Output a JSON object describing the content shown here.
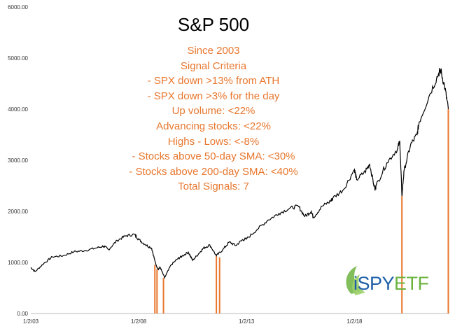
{
  "title": "S&P 500",
  "criteria": [
    "Since 2003",
    "Signal Criteria",
    "- SPX down >13% from ATH",
    "- SPX down >3% for the day",
    "Up volume: <22%",
    "Advancing stocks: <22%",
    "Highs - Lows: <-8%",
    "- Stocks above 50-day SMA: <30%",
    "- Stocks above 200-day SMA: <40%",
    "Total Signals: 7"
  ],
  "logo": {
    "prefix": "iSPY",
    "suffix": "ETF",
    "colors": {
      "prefix": "#1e5fa8",
      "suffix": "#6cb33f"
    }
  },
  "chart_data": {
    "type": "line",
    "title": "S&P 500",
    "ylim": [
      0,
      6000
    ],
    "yticks": [
      "0.00",
      "1000.00",
      "2000.00",
      "3000.00",
      "4000.00",
      "5000.00",
      "6000.00"
    ],
    "xticks": [
      "1/2/03",
      "1/2/08",
      "1/2/13",
      "1/2/18"
    ],
    "xtick_years": [
      2003,
      2008,
      2013,
      2018
    ],
    "xlim": [
      2003.0,
      2022.4
    ],
    "grid": false,
    "series": [
      {
        "color": "#000000",
        "x": [
          2003.0,
          2003.2,
          2003.6,
          2004.0,
          2004.5,
          2005.0,
          2005.5,
          2006.0,
          2006.4,
          2006.6,
          2007.0,
          2007.4,
          2007.8,
          2008.0,
          2008.3,
          2008.6,
          2008.8,
          2008.9,
          2009.0,
          2009.2,
          2009.5,
          2009.8,
          2010.0,
          2010.3,
          2010.5,
          2010.8,
          2011.0,
          2011.3,
          2011.6,
          2011.9,
          2012.2,
          2012.5,
          2012.8,
          2013.0,
          2013.5,
          2014.0,
          2014.5,
          2015.0,
          2015.4,
          2015.7,
          2016.0,
          2016.1,
          2016.5,
          2016.9,
          2017.0,
          2017.5,
          2018.0,
          2018.1,
          2018.5,
          2018.7,
          2018.95,
          2019.0,
          2019.5,
          2020.0,
          2020.1,
          2020.2,
          2020.3,
          2020.6,
          2020.9,
          2021.0,
          2021.5,
          2021.9,
          2022.0,
          2022.2,
          2022.35
        ],
        "values": [
          900,
          820,
          980,
          1110,
          1130,
          1210,
          1230,
          1280,
          1320,
          1250,
          1430,
          1520,
          1550,
          1450,
          1350,
          1280,
          950,
          870,
          900,
          700,
          950,
          1070,
          1120,
          1200,
          1040,
          1180,
          1280,
          1340,
          1130,
          1250,
          1400,
          1330,
          1440,
          1460,
          1650,
          1830,
          1960,
          2060,
          2100,
          1900,
          2000,
          1880,
          2100,
          2200,
          2260,
          2430,
          2820,
          2620,
          2780,
          2930,
          2420,
          2500,
          2950,
          3230,
          3380,
          2300,
          2800,
          3300,
          3500,
          3750,
          4300,
          4700,
          4760,
          4400,
          4000
        ]
      }
    ],
    "signal_lines": {
      "color": "#e8772e",
      "x": [
        2008.75,
        2008.85,
        2009.15,
        2011.6,
        2011.75,
        2020.2,
        2022.35
      ],
      "values": [
        950,
        870,
        700,
        1130,
        1100,
        2300,
        4000
      ]
    }
  }
}
